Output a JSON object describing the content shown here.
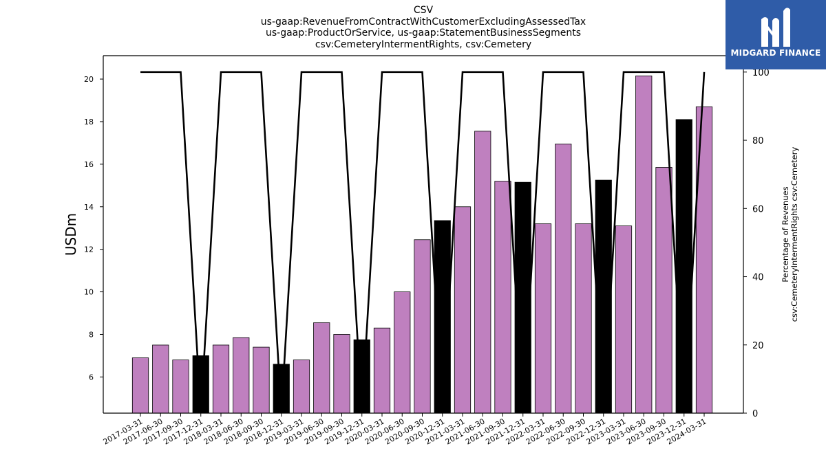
{
  "title_lines": [
    "CSV",
    "us-gaap:RevenueFromContractWithCustomerExcludingAssessedTax",
    "us-gaap:ProductOrService, us-gaap:StatementBusinessSegments",
    "csv:CemeteryIntermentRights, csv:Cemetery"
  ],
  "logo": {
    "text": "MIDGARD FINANCE",
    "icon": "midgard-logo-mark-icon",
    "background": "#2f5ca8"
  },
  "colors": {
    "bar": "#bf80bf",
    "bar_q4": "#000000",
    "line": "#000000"
  },
  "chart_data": {
    "type": "bar",
    "categories": [
      "2017-03-31",
      "2017-06-30",
      "2017-09-30",
      "2017-12-31",
      "2018-03-31",
      "2018-06-30",
      "2018-09-30",
      "2018-12-31",
      "2019-03-31",
      "2019-06-30",
      "2019-09-30",
      "2019-12-31",
      "2020-03-31",
      "2020-06-30",
      "2020-09-30",
      "2020-12-31",
      "2021-03-31",
      "2021-06-30",
      "2021-09-30",
      "2021-12-31",
      "2022-03-31",
      "2022-06-30",
      "2022-09-30",
      "2022-12-31",
      "2023-03-31",
      "2023-06-30",
      "2023-09-30",
      "2023-12-31",
      "2024-03-31"
    ],
    "values": [
      6.9,
      7.5,
      6.8,
      7.0,
      7.5,
      7.85,
      7.4,
      6.6,
      6.8,
      8.55,
      8.0,
      7.75,
      8.3,
      10.0,
      12.45,
      13.35,
      14.0,
      17.55,
      15.2,
      15.15,
      13.2,
      16.95,
      13.2,
      15.25,
      13.1,
      20.15,
      15.85,
      18.1,
      18.7
    ],
    "highlighted": [
      false,
      false,
      false,
      true,
      false,
      false,
      false,
      true,
      false,
      false,
      false,
      true,
      false,
      false,
      false,
      true,
      false,
      false,
      false,
      true,
      false,
      false,
      false,
      true,
      false,
      false,
      false,
      true,
      false
    ],
    "line_series": {
      "values": [
        100,
        100,
        100,
        0,
        100,
        100,
        100,
        0,
        100,
        100,
        100,
        0,
        100,
        100,
        100,
        0,
        100,
        100,
        100,
        0,
        100,
        100,
        100,
        0,
        100,
        100,
        100,
        0,
        100
      ]
    },
    "ylabel": "USDm",
    "ylim": [
      4.3,
      21.1
    ],
    "yticks": [
      6,
      8,
      10,
      12,
      14,
      16,
      18,
      20
    ],
    "y2label_lines": [
      "Percentage of Revenues",
      "csv:CemeteryIntermentRights csv:Cemetery"
    ],
    "y2lim": [
      0,
      104.8
    ],
    "y2ticks": [
      0,
      20,
      40,
      60,
      80,
      100
    ],
    "grid": false,
    "legend": "none"
  }
}
